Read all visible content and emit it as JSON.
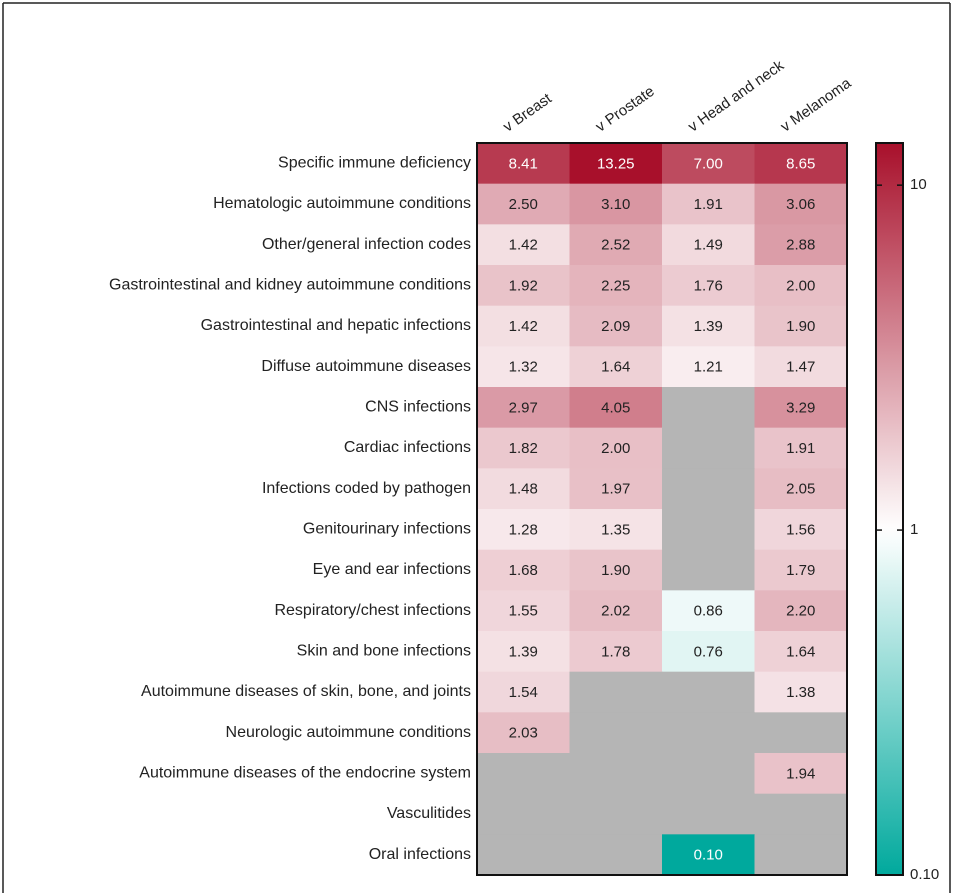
{
  "chart_data": {
    "type": "heatmap",
    "columns": [
      "v Breast",
      "v Prostate",
      "v Head and neck",
      "v Melanoma"
    ],
    "rows": [
      "Specific immune deficiency",
      "Hematologic autoimmune conditions",
      "Other/general infection codes",
      "Gastrointestinal and kidney autoimmune conditions",
      "Gastrointestinal and hepatic infections",
      "Diffuse autoimmune diseases",
      "CNS infections",
      "Cardiac infections",
      "Infections coded by pathogen",
      "Genitourinary infections",
      "Eye and ear infections",
      "Respiratory/chest infections",
      "Skin and bone infections",
      "Autoimmune diseases of skin, bone, and joints",
      "Neurologic autoimmune conditions",
      "Autoimmune diseases of the endocrine system",
      "Vasculitides",
      "Oral infections"
    ],
    "z": [
      [
        8.41,
        13.25,
        7.0,
        8.65
      ],
      [
        2.5,
        3.1,
        1.91,
        3.06
      ],
      [
        1.42,
        2.52,
        1.49,
        2.88
      ],
      [
        1.92,
        2.25,
        1.76,
        2.0
      ],
      [
        1.42,
        2.09,
        1.39,
        1.9
      ],
      [
        1.32,
        1.64,
        1.21,
        1.47
      ],
      [
        2.97,
        4.05,
        null,
        3.29
      ],
      [
        1.82,
        2.0,
        null,
        1.91
      ],
      [
        1.48,
        1.97,
        null,
        2.05
      ],
      [
        1.28,
        1.35,
        null,
        1.56
      ],
      [
        1.68,
        1.9,
        null,
        1.79
      ],
      [
        1.55,
        2.02,
        0.86,
        2.2
      ],
      [
        1.39,
        1.78,
        0.76,
        1.64
      ],
      [
        1.54,
        null,
        null,
        1.38
      ],
      [
        2.03,
        null,
        null,
        null
      ],
      [
        null,
        null,
        null,
        1.94
      ],
      [
        null,
        null,
        null,
        null
      ],
      [
        null,
        null,
        0.1,
        null
      ]
    ],
    "value_labels": [
      [
        "8.41",
        "13.25",
        "7.00",
        "8.65"
      ],
      [
        "2.50",
        "3.10",
        "1.91",
        "3.06"
      ],
      [
        "1.42",
        "2.52",
        "1.49",
        "2.88"
      ],
      [
        "1.92",
        "2.25",
        "1.76",
        "2.00"
      ],
      [
        "1.42",
        "2.09",
        "1.39",
        "1.90"
      ],
      [
        "1.32",
        "1.64",
        "1.21",
        "1.47"
      ],
      [
        "2.97",
        "4.05",
        null,
        "3.29"
      ],
      [
        "1.82",
        "2.00",
        null,
        "1.91"
      ],
      [
        "1.48",
        "1.97",
        null,
        "2.05"
      ],
      [
        "1.28",
        "1.35",
        null,
        "1.56"
      ],
      [
        "1.68",
        "1.90",
        null,
        "1.79"
      ],
      [
        "1.55",
        "2.02",
        "0.86",
        "2.20"
      ],
      [
        "1.39",
        "1.78",
        "0.76",
        "1.64"
      ],
      [
        "1.54",
        null,
        null,
        "1.38"
      ],
      [
        "2.03",
        null,
        null,
        null
      ],
      [
        null,
        null,
        null,
        "1.94"
      ],
      [
        null,
        null,
        null,
        null
      ],
      [
        null,
        null,
        "0.10",
        null
      ]
    ],
    "zlim": [
      0.1,
      13.25
    ],
    "zticks": [
      {
        "value": 0.1,
        "label": "0.10"
      },
      1,
      10
    ],
    "log_scale": true,
    "colors": {
      "low": "#00a99d",
      "mid": "#ffffff",
      "high": "#a8102b",
      "missing": "#b5b5b5"
    }
  }
}
